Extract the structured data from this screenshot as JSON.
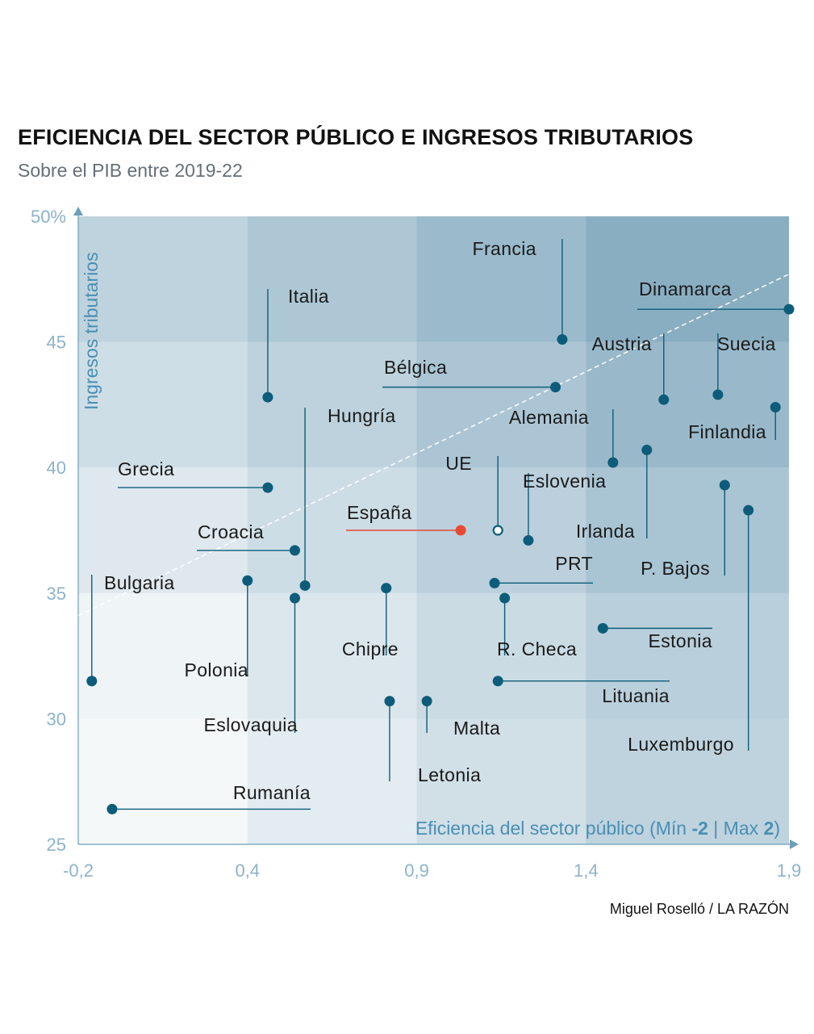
{
  "title": "EFICIENCIA DEL SECTOR PÚBLICO E INGRESOS TRIBUTARIOS",
  "subtitle": "Sobre el PIB entre 2019-22",
  "credit": "Miguel Roselló / LA RAZÓN",
  "colors": {
    "point": "#0d5c7a",
    "highlight": "#e64a35",
    "axis_text": "#8db3c8",
    "axis_label": "#4a8fb3",
    "axis_line": "#6d9fbb",
    "label_text": "#1a1a1a",
    "trend": "#ffffff"
  },
  "chart_data": {
    "type": "scatter",
    "xlabel": "Eficiencia del sector público (Mín",
    "xlabel_min": "-2",
    "xlabel_sep": "| Max",
    "xlabel_max": "2",
    "xlabel_close": ")",
    "ylabel": "Ingresos tributarios",
    "xlim": [
      -0.2,
      1.9
    ],
    "ylim": [
      25,
      50
    ],
    "x_ticks": [
      "-0,2",
      "0,4",
      "0,9",
      "1,4",
      "1,9"
    ],
    "y_ticks": [
      "25",
      "30",
      "35",
      "40",
      "45",
      "50%"
    ],
    "background_shading": "gradient quadrants, darker toward high efficiency and high tax revenue",
    "trend_line": {
      "style": "dashed",
      "from": [
        -0.2,
        34.1
      ],
      "to": [
        1.9,
        47.7
      ]
    },
    "points": [
      {
        "name": "Francia",
        "x": 1.23,
        "y": 45.1
      },
      {
        "name": "Dinamarca",
        "x": 1.9,
        "y": 46.3
      },
      {
        "name": "Italia",
        "x": 0.36,
        "y": 42.8
      },
      {
        "name": "Bélgica",
        "x": 1.21,
        "y": 43.2
      },
      {
        "name": "Austria",
        "x": 1.53,
        "y": 42.7
      },
      {
        "name": "Suecia",
        "x": 1.69,
        "y": 42.9
      },
      {
        "name": "Finlandia",
        "x": 1.86,
        "y": 42.4
      },
      {
        "name": "Alemania",
        "x": 1.38,
        "y": 40.2
      },
      {
        "name": "Hungría",
        "x": 0.47,
        "y": 35.3
      },
      {
        "name": "Irlanda",
        "x": 1.48,
        "y": 40.7
      },
      {
        "name": "Grecia",
        "x": 0.36,
        "y": 39.2
      },
      {
        "name": "UE",
        "x": 1.04,
        "y": 37.5,
        "hollow": true
      },
      {
        "name": "Eslovenia",
        "x": 1.13,
        "y": 37.1
      },
      {
        "name": "España",
        "x": 0.93,
        "y": 37.5,
        "highlight": true
      },
      {
        "name": "P. Bajos",
        "x": 1.71,
        "y": 39.3
      },
      {
        "name": "Luxemburgo",
        "x": 1.78,
        "y": 38.3
      },
      {
        "name": "Croacia",
        "x": 0.44,
        "y": 36.7
      },
      {
        "name": "PRT",
        "x": 1.03,
        "y": 35.4
      },
      {
        "name": "Bulgaria",
        "x": -0.16,
        "y": 31.5
      },
      {
        "name": "Polonia",
        "x": 0.3,
        "y": 35.5
      },
      {
        "name": "Eslovaquia",
        "x": 0.44,
        "y": 34.8
      },
      {
        "name": "Chipre",
        "x": 0.71,
        "y": 35.2
      },
      {
        "name": "R. Checa",
        "x": 1.06,
        "y": 34.8
      },
      {
        "name": "Estonia",
        "x": 1.35,
        "y": 33.6
      },
      {
        "name": "Lituania",
        "x": 1.04,
        "y": 31.5
      },
      {
        "name": "Letonia",
        "x": 0.72,
        "y": 30.7
      },
      {
        "name": "Malta",
        "x": 0.83,
        "y": 30.7
      },
      {
        "name": "Rumanía",
        "x": -0.1,
        "y": 26.4
      }
    ]
  }
}
